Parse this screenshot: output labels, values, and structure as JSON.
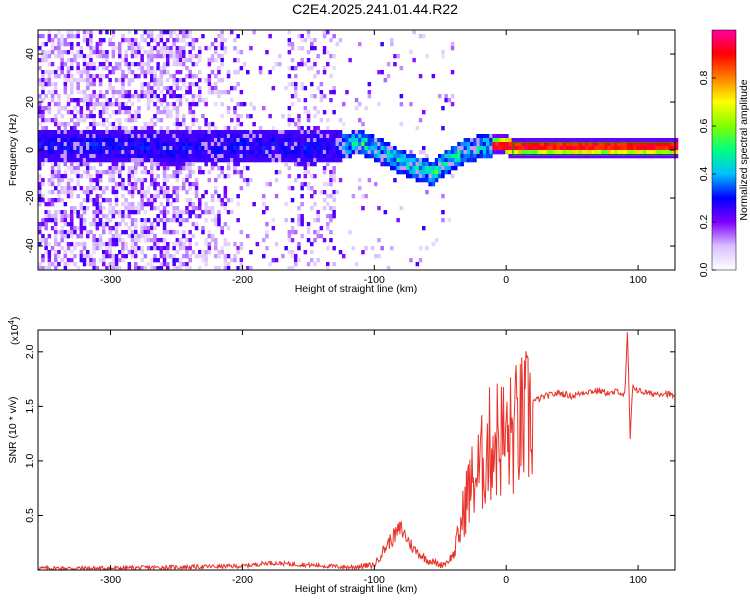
{
  "title": "C2E4.2025.241.01.44.R22",
  "chart_data": [
    {
      "type": "heatmap",
      "xlabel": "Height of straight line (km)",
      "ylabel": "Frequency (Hz)",
      "xlim": [
        -355,
        128
      ],
      "ylim": [
        -50,
        50
      ],
      "xticks": [
        -300,
        -200,
        -100,
        0,
        100
      ],
      "yticks": [
        -40,
        -20,
        0,
        20,
        40
      ],
      "grid": false,
      "ridge_x": [
        -355,
        -300,
        -250,
        -200,
        -150,
        -125,
        -110,
        -95,
        -80,
        -65,
        -55,
        -48,
        -40,
        -30,
        -20,
        -10,
        0,
        5,
        20,
        50,
        90,
        128
      ],
      "ridge_y": [
        2,
        2,
        1,
        2,
        1,
        2,
        3,
        0,
        -5,
        -8,
        -10,
        -6,
        -3,
        0,
        1,
        2,
        2,
        1,
        1,
        1,
        1,
        1
      ],
      "colorbar": {
        "label": "Normalized spectral amplitude",
        "range": [
          0,
          1
        ],
        "ticks": [
          "0.0",
          "0.2",
          "0.4",
          "0.6",
          "0.8"
        ],
        "tick_values": [
          0,
          0.2,
          0.4,
          0.6,
          0.8
        ],
        "colors": [
          "#ffffff",
          "#d8c0ff",
          "#8000ff",
          "#0000ff",
          "#00c0ff",
          "#00ff80",
          "#80ff00",
          "#ffff00",
          "#ff8000",
          "#ff0000",
          "#ff00a0"
        ]
      }
    },
    {
      "type": "line",
      "xlabel": "Height of straight line (km)",
      "ylabel": "SNR (10 * v/v)",
      "scale_label": "(x10",
      "scale_exp": "4",
      "xlim": [
        -355,
        128
      ],
      "ylim": [
        0,
        2.2
      ],
      "xticks": [
        -300,
        -200,
        -100,
        0,
        100
      ],
      "yticks": [
        "0.5",
        "1.0",
        "1.5",
        "2.0"
      ],
      "ytick_values": [
        0.5,
        1.0,
        1.5,
        2.0
      ],
      "grid": false,
      "color": "#e8322a",
      "x": [
        -355,
        -300,
        -250,
        -200,
        -180,
        -150,
        -120,
        -100,
        -90,
        -80,
        -70,
        -60,
        -55,
        -50,
        -45,
        -40,
        -35,
        -30,
        -25,
        -20,
        -15,
        -10,
        -5,
        0,
        10,
        20,
        30,
        40,
        50,
        60,
        70,
        80,
        85,
        90,
        92,
        94,
        96,
        100,
        110,
        120,
        128
      ],
      "y": [
        0.02,
        0.02,
        0.03,
        0.04,
        0.07,
        0.05,
        0.03,
        0.05,
        0.25,
        0.4,
        0.2,
        0.1,
        0.08,
        0.05,
        0.08,
        0.15,
        0.4,
        0.75,
        0.9,
        1.0,
        1.2,
        1.3,
        1.35,
        1.3,
        1.45,
        1.55,
        1.6,
        1.63,
        1.6,
        1.64,
        1.65,
        1.62,
        1.65,
        1.6,
        2.2,
        1.2,
        1.7,
        1.65,
        1.62,
        1.63,
        1.6
      ]
    }
  ]
}
